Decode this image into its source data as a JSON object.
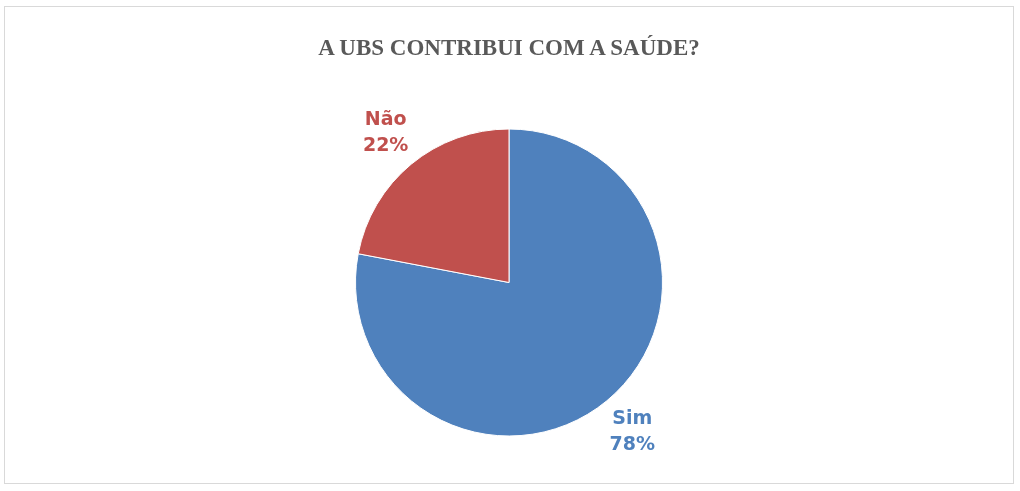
{
  "chart_data": {
    "type": "pie",
    "title": "A UBS CONTRIBUI COM A SAÚDE?",
    "categories": [
      "Sim",
      "Não"
    ],
    "values": [
      78,
      22
    ],
    "colors": [
      "#4f81bd",
      "#c0504d"
    ],
    "value_labels": [
      "78%",
      "22%"
    ],
    "legend": false
  }
}
